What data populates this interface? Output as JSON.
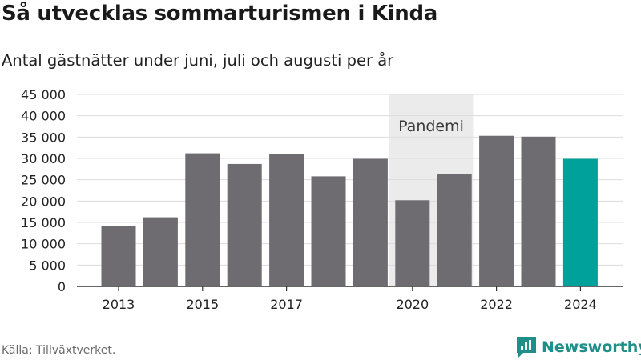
{
  "title": "Så utvecklas sommarturismen i Kinda",
  "subtitle": "Antal gästnätter under juni, juli och augusti per år",
  "source": "Källa: Tillväxtverket.",
  "brand": "Newsworthy",
  "chart_data": {
    "type": "bar",
    "categories": [
      "2013",
      "2014",
      "2015",
      "2016",
      "2017",
      "2018",
      "2019",
      "2020",
      "2021",
      "2022",
      "2023",
      "2024"
    ],
    "values": [
      14100,
      16200,
      31200,
      28700,
      31000,
      25800,
      29900,
      20200,
      26300,
      35300,
      35100,
      29900
    ],
    "x_tick_labels": [
      "2013",
      "2015",
      "2017",
      "2020",
      "2022",
      "2024"
    ],
    "y_tick_labels": [
      "0",
      "5 000",
      "10 000",
      "15 000",
      "20 000",
      "25 000",
      "30 000",
      "35 000",
      "40 000",
      "45 000"
    ],
    "ylim": [
      0,
      45000
    ],
    "y_ticks": [
      0,
      5000,
      10000,
      15000,
      20000,
      25000,
      30000,
      35000,
      40000,
      45000
    ],
    "annotation": {
      "label": "Pandemi",
      "from": "2020",
      "to": "2021"
    },
    "bar_color": "#6e6c70",
    "highlight_color": "#00a19a",
    "highlight_category": "2024",
    "shade_color": "#ebebeb",
    "grid": true
  }
}
